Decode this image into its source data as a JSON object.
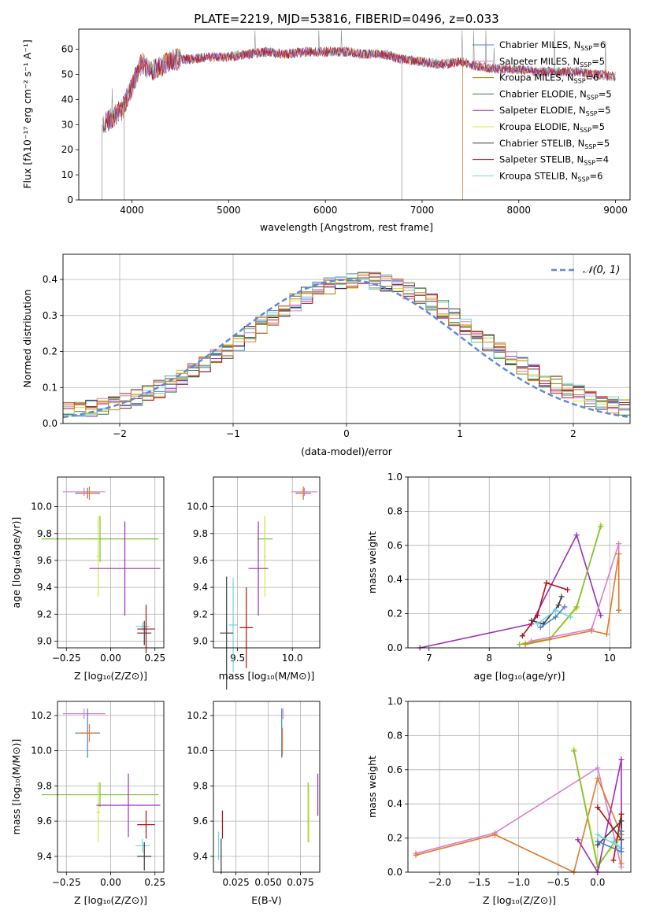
{
  "figure": {
    "title": "PLATE=2219, MJD=53816, FIBERID=0496, z=0.033"
  },
  "series_styles": [
    {
      "name": "Chabrier MILES",
      "nssp": "6",
      "color": "#4c7fcc"
    },
    {
      "name": "Salpeter MILES",
      "nssp": "5",
      "color": "#d67fd4"
    },
    {
      "name": "Kroupa MILES",
      "nssp": "6",
      "color": "#a08000"
    },
    {
      "name": "Chabrier ELODIE",
      "nssp": "5",
      "color": "#3c7a3c"
    },
    {
      "name": "Salpeter ELODIE",
      "nssp": "5",
      "color": "#9c2fb6"
    },
    {
      "name": "Kroupa ELODIE",
      "nssp": "5",
      "color": "#d7e83a"
    },
    {
      "name": "Chabrier STELIB",
      "nssp": "5",
      "color": "#3c3c3c"
    },
    {
      "name": "Salpeter STELIB",
      "nssp": "4",
      "color": "#b01010"
    },
    {
      "name": "Kroupa STELIB",
      "nssp": "6",
      "color": "#6fd8dc"
    }
  ],
  "extra_colors": {
    "orange": "#e07a2a",
    "lightgreen": "#7fbf3a",
    "spectrum_grey": "#808080",
    "cyan": "#5ec9d2"
  },
  "chart_data": [
    {
      "id": "spectrum",
      "type": "line",
      "title": "PLATE=2219, MJD=53816, FIBERID=0496, z=0.033",
      "xlabel": "wavelength [Angstrom, rest frame]",
      "ylabel": "Flux [fλ10⁻¹⁷ erg cm⁻² s⁻¹ A⁻¹]",
      "xlim": [
        3450,
        9150
      ],
      "ylim": [
        0,
        68
      ],
      "xticks": [
        "4000",
        "5000",
        "6000",
        "7000",
        "8000",
        "9000"
      ],
      "yticks": [
        "0",
        "10",
        "20",
        "30",
        "40",
        "50",
        "60"
      ],
      "x": [
        3700,
        3800,
        3900,
        4000,
        4100,
        4200,
        4300,
        4400,
        4500,
        4600,
        4800,
        5000,
        5200,
        5400,
        5600,
        5800,
        6000,
        6200,
        6400,
        6600,
        6800,
        7000,
        7200,
        7400,
        7600,
        7800,
        8000,
        8200,
        8400,
        8600,
        8800,
        9000
      ],
      "y": [
        30,
        33,
        36,
        45,
        55,
        51,
        53,
        56,
        56,
        56,
        57,
        57,
        58,
        59,
        58,
        59,
        59,
        59,
        58,
        58,
        56,
        55,
        54,
        55,
        53,
        52,
        52,
        51,
        51,
        51,
        50,
        49
      ],
      "legend_position": "upper right"
    },
    {
      "id": "residual-histogram",
      "type": "line",
      "xlabel": "(data-model)/error",
      "ylabel": "Normed distribution",
      "xlim": [
        -2.5,
        2.5
      ],
      "ylim": [
        0,
        0.47
      ],
      "xticks": [
        "−2",
        "−1",
        "0",
        "1",
        "2"
      ],
      "yticks": [
        "0.0",
        "0.1",
        "0.2",
        "0.3",
        "0.4"
      ],
      "legend": "𝒩(0, 1)",
      "legend_position": "upper right",
      "reference_curve": "normal pdf mean 0 sigma 1"
    },
    {
      "id": "age-vs-Z",
      "type": "scatter",
      "xlabel": "Z [log₁₀(Z/Z⊙)]",
      "ylabel": "age  [log₁₀(age/yr)]",
      "xlim": [
        -0.3,
        0.3
      ],
      "ylim": [
        8.95,
        10.22
      ],
      "xticks": [
        "−0.25",
        "0.00",
        "0.25"
      ],
      "yticks": [
        "9.0",
        "9.2",
        "9.4",
        "9.6",
        "9.8",
        "10.0"
      ],
      "points": [
        {
          "x": -0.15,
          "y": 10.11,
          "xerr": 0.12,
          "yerr": 0.03,
          "color": "#d67fd4"
        },
        {
          "x": -0.13,
          "y": 10.1,
          "xerr": 0.07,
          "yerr": 0.04,
          "color": "#4c7fcc"
        },
        {
          "x": -0.12,
          "y": 10.1,
          "xerr": 0.05,
          "yerr": 0.05,
          "color": "#e07a2a"
        },
        {
          "x": -0.06,
          "y": 9.76,
          "xerr": 0.33,
          "yerr": 0.17,
          "color": "#7fbf3a"
        },
        {
          "x": -0.07,
          "y": 9.63,
          "xerr": 0.01,
          "yerr": 0.3,
          "color": "#d7e83a"
        },
        {
          "x": 0.08,
          "y": 9.54,
          "xerr": 0.2,
          "yerr": 0.35,
          "color": "#9c2fb6"
        },
        {
          "x": 0.18,
          "y": 9.11,
          "xerr": 0.04,
          "yerr": 0.03,
          "color": "#6fd8dc"
        },
        {
          "x": 0.2,
          "y": 9.09,
          "xerr": 0.05,
          "yerr": 0.18,
          "color": "#b01010"
        },
        {
          "x": 0.19,
          "y": 9.06,
          "xerr": 0.04,
          "yerr": 0.09,
          "color": "#3c3c3c"
        }
      ]
    },
    {
      "id": "age-vs-mass",
      "type": "scatter",
      "xlabel": "mass [log₁₀(M/M⊙)]",
      "ylabel": "",
      "xlim": [
        9.28,
        10.25
      ],
      "ylim": [
        8.95,
        10.22
      ],
      "xticks": [
        "9.5",
        "10.0"
      ],
      "yticks": [
        "9.0",
        "9.2",
        "9.4",
        "9.6",
        "9.8",
        "10.0"
      ],
      "points": [
        {
          "x": 10.11,
          "y": 10.11,
          "xerr": 0.12,
          "yerr": 0.03,
          "color": "#d67fd4"
        },
        {
          "x": 10.1,
          "y": 10.1,
          "xerr": 0.07,
          "yerr": 0.04,
          "color": "#4c7fcc"
        },
        {
          "x": 10.1,
          "y": 10.1,
          "xerr": 0.05,
          "yerr": 0.05,
          "color": "#e07a2a"
        },
        {
          "x": 9.75,
          "y": 9.76,
          "xerr": 0.07,
          "yerr": 0.17,
          "color": "#7fbf3a"
        },
        {
          "x": 9.75,
          "y": 9.63,
          "xerr": 0.01,
          "yerr": 0.3,
          "color": "#d7e83a"
        },
        {
          "x": 9.69,
          "y": 9.54,
          "xerr": 0.09,
          "yerr": 0.35,
          "color": "#9c2fb6"
        },
        {
          "x": 9.46,
          "y": 9.12,
          "xerr": 0.04,
          "yerr": 0.35,
          "color": "#6fd8dc"
        },
        {
          "x": 9.58,
          "y": 9.1,
          "xerr": 0.06,
          "yerr": 0.3,
          "color": "#b01010"
        },
        {
          "x": 9.4,
          "y": 9.06,
          "xerr": 0.06,
          "yerr": 0.42,
          "color": "#3c3c3c"
        }
      ]
    },
    {
      "id": "mass-weight-vs-age",
      "type": "line",
      "xlabel": "age  [log₁₀(age/yr)]",
      "ylabel": "mass weight",
      "xlim": [
        6.65,
        10.35
      ],
      "ylim": [
        0,
        1.0
      ],
      "xticks": [
        "7",
        "8",
        "9",
        "10"
      ],
      "yticks": [
        "0.0",
        "0.2",
        "0.4",
        "0.6",
        "0.8",
        "1.0"
      ],
      "series": [
        {
          "color": "#9c2fb6",
          "x": [
            6.85,
            8.7,
            9.45,
            9.85
          ],
          "y": [
            0.0,
            0.14,
            0.66,
            0.19
          ]
        },
        {
          "color": "#b01010",
          "x": [
            8.55,
            8.8,
            8.95,
            9.3
          ],
          "y": [
            0.07,
            0.19,
            0.38,
            0.34
          ]
        },
        {
          "color": "#d7e83a",
          "x": [
            8.6,
            9.0,
            9.45,
            9.85
          ],
          "y": [
            0.03,
            0.05,
            0.23,
            0.72
          ]
        },
        {
          "color": "#7fbf3a",
          "x": [
            8.5,
            9.0,
            9.45,
            9.85
          ],
          "y": [
            0.02,
            0.05,
            0.24,
            0.71
          ]
        },
        {
          "color": "#d67fd4",
          "x": [
            8.7,
            9.7,
            10.15,
            10.15
          ],
          "y": [
            0.04,
            0.11,
            0.61,
            0.22
          ]
        },
        {
          "color": "#e07a2a",
          "x": [
            8.6,
            9.7,
            9.95,
            10.15,
            10.15
          ],
          "y": [
            0.02,
            0.1,
            0.08,
            0.55,
            0.22
          ]
        },
        {
          "color": "#3c3c3c",
          "x": [
            8.7,
            8.9,
            9.15,
            9.2
          ],
          "y": [
            0.16,
            0.14,
            0.25,
            0.3
          ]
        },
        {
          "color": "#6fd8dc",
          "x": [
            8.8,
            9.1,
            9.35
          ],
          "y": [
            0.14,
            0.22,
            0.18
          ]
        },
        {
          "color": "#4c7fcc",
          "x": [
            8.85,
            9.1,
            9.25
          ],
          "y": [
            0.12,
            0.18,
            0.24
          ]
        }
      ]
    },
    {
      "id": "mass-vs-Z",
      "type": "scatter",
      "xlabel": "Z [log₁₀(Z/Z⊙)]",
      "ylabel": "mass [log₁₀(M/M⊙)]",
      "xlim": [
        -0.3,
        0.3
      ],
      "ylim": [
        9.31,
        10.28
      ],
      "xticks": [
        "−0.25",
        "0.00",
        "0.25"
      ],
      "yticks": [
        "9.4",
        "9.6",
        "9.8",
        "10.0",
        "10.2"
      ],
      "points": [
        {
          "x": -0.15,
          "y": 10.21,
          "xerr": 0.12,
          "yerr": 0.03,
          "color": "#d67fd4"
        },
        {
          "x": -0.13,
          "y": 10.1,
          "xerr": 0.07,
          "yerr": 0.14,
          "color": "#4c7fcc"
        },
        {
          "x": -0.12,
          "y": 10.1,
          "xerr": 0.05,
          "yerr": 0.05,
          "color": "#e07a2a"
        },
        {
          "x": -0.06,
          "y": 9.75,
          "xerr": 0.33,
          "yerr": 0.07,
          "color": "#7fbf3a"
        },
        {
          "x": -0.07,
          "y": 9.65,
          "xerr": 0.01,
          "yerr": 0.17,
          "color": "#d7e83a"
        },
        {
          "x": 0.1,
          "y": 9.69,
          "xerr": 0.18,
          "yerr": 0.18,
          "color": "#9c2fb6"
        },
        {
          "x": 0.18,
          "y": 9.46,
          "xerr": 0.04,
          "yerr": 0.04,
          "color": "#6fd8dc"
        },
        {
          "x": 0.2,
          "y": 9.58,
          "xerr": 0.05,
          "yerr": 0.08,
          "color": "#b01010"
        },
        {
          "x": 0.19,
          "y": 9.4,
          "xerr": 0.04,
          "yerr": 0.08,
          "color": "#3c3c3c"
        }
      ]
    },
    {
      "id": "mass-vs-EBV",
      "type": "scatter",
      "xlabel": "E(B-V)",
      "ylabel": "",
      "xlim": [
        0.0075,
        0.09
      ],
      "ylim": [
        9.31,
        10.28
      ],
      "xticks": [
        "0.025",
        "0.050",
        "0.075"
      ],
      "yticks": [
        "9.4",
        "9.6",
        "9.8",
        "10.0",
        "10.2"
      ],
      "points": [
        {
          "x": 0.0115,
          "y": 9.46,
          "yerr": 0.08,
          "color": "#6fd8dc"
        },
        {
          "x": 0.0135,
          "y": 9.4,
          "yerr": 0.1,
          "color": "#3c3c3c"
        },
        {
          "x": 0.0145,
          "y": 9.58,
          "yerr": 0.08,
          "color": "#b01010"
        },
        {
          "x": 0.0615,
          "y": 10.21,
          "yerr": 0.03,
          "color": "#d67fd4"
        },
        {
          "x": 0.0605,
          "y": 10.1,
          "yerr": 0.14,
          "color": "#4c7fcc"
        },
        {
          "x": 0.061,
          "y": 10.05,
          "yerr": 0.08,
          "color": "#e07a2a"
        },
        {
          "x": 0.081,
          "y": 9.65,
          "yerr": 0.17,
          "color": "#7fbf3a"
        },
        {
          "x": 0.0815,
          "y": 9.64,
          "yerr": 0.16,
          "color": "#d7e83a"
        },
        {
          "x": 0.0885,
          "y": 9.75,
          "yerr": 0.12,
          "color": "#9c2fb6"
        }
      ]
    },
    {
      "id": "mass-weight-vs-Z",
      "type": "line",
      "xlabel": "Z [log₁₀(Z/Z⊙)]",
      "ylabel": "mass weight",
      "xlim": [
        -2.4,
        0.42
      ],
      "ylim": [
        0,
        1.0
      ],
      "xticks": [
        "−2.0",
        "−1.5",
        "−1.0",
        "−0.5",
        "0.0"
      ],
      "yticks": [
        "0.0",
        "0.2",
        "0.4",
        "0.6",
        "0.8",
        "1.0"
      ],
      "series": [
        {
          "color": "#d67fd4",
          "x": [
            -2.3,
            -1.3,
            0.0,
            0.3
          ],
          "y": [
            0.11,
            0.23,
            0.61,
            0.03
          ]
        },
        {
          "color": "#e07a2a",
          "x": [
            -2.3,
            -1.3,
            -0.3,
            0.0,
            0.3,
            0.3
          ],
          "y": [
            0.1,
            0.22,
            0.0,
            0.55,
            0.22,
            0.05
          ]
        },
        {
          "color": "#d7e83a",
          "x": [
            -0.3,
            0.0,
            0.3
          ],
          "y": [
            0.72,
            0.05,
            0.2
          ]
        },
        {
          "color": "#7fbf3a",
          "x": [
            -0.3,
            0.0,
            0.3
          ],
          "y": [
            0.71,
            0.03,
            0.24
          ]
        },
        {
          "color": "#9c2fb6",
          "x": [
            -0.25,
            0.0,
            0.3,
            0.3
          ],
          "y": [
            0.19,
            0.0,
            0.66,
            0.14
          ]
        },
        {
          "color": "#b01010",
          "x": [
            0.0,
            0.3,
            0.3,
            0.2
          ],
          "y": [
            0.38,
            0.19,
            0.34,
            0.07
          ]
        },
        {
          "color": "#3c3c3c",
          "x": [
            0.0,
            0.3,
            0.3
          ],
          "y": [
            0.16,
            0.3,
            0.14
          ]
        },
        {
          "color": "#6fd8dc",
          "x": [
            0.0,
            0.3,
            0.2
          ],
          "y": [
            0.22,
            0.14,
            0.18
          ]
        },
        {
          "color": "#4c7fcc",
          "x": [
            0.0,
            0.3,
            0.3
          ],
          "y": [
            0.18,
            0.12,
            0.24
          ]
        }
      ]
    }
  ]
}
